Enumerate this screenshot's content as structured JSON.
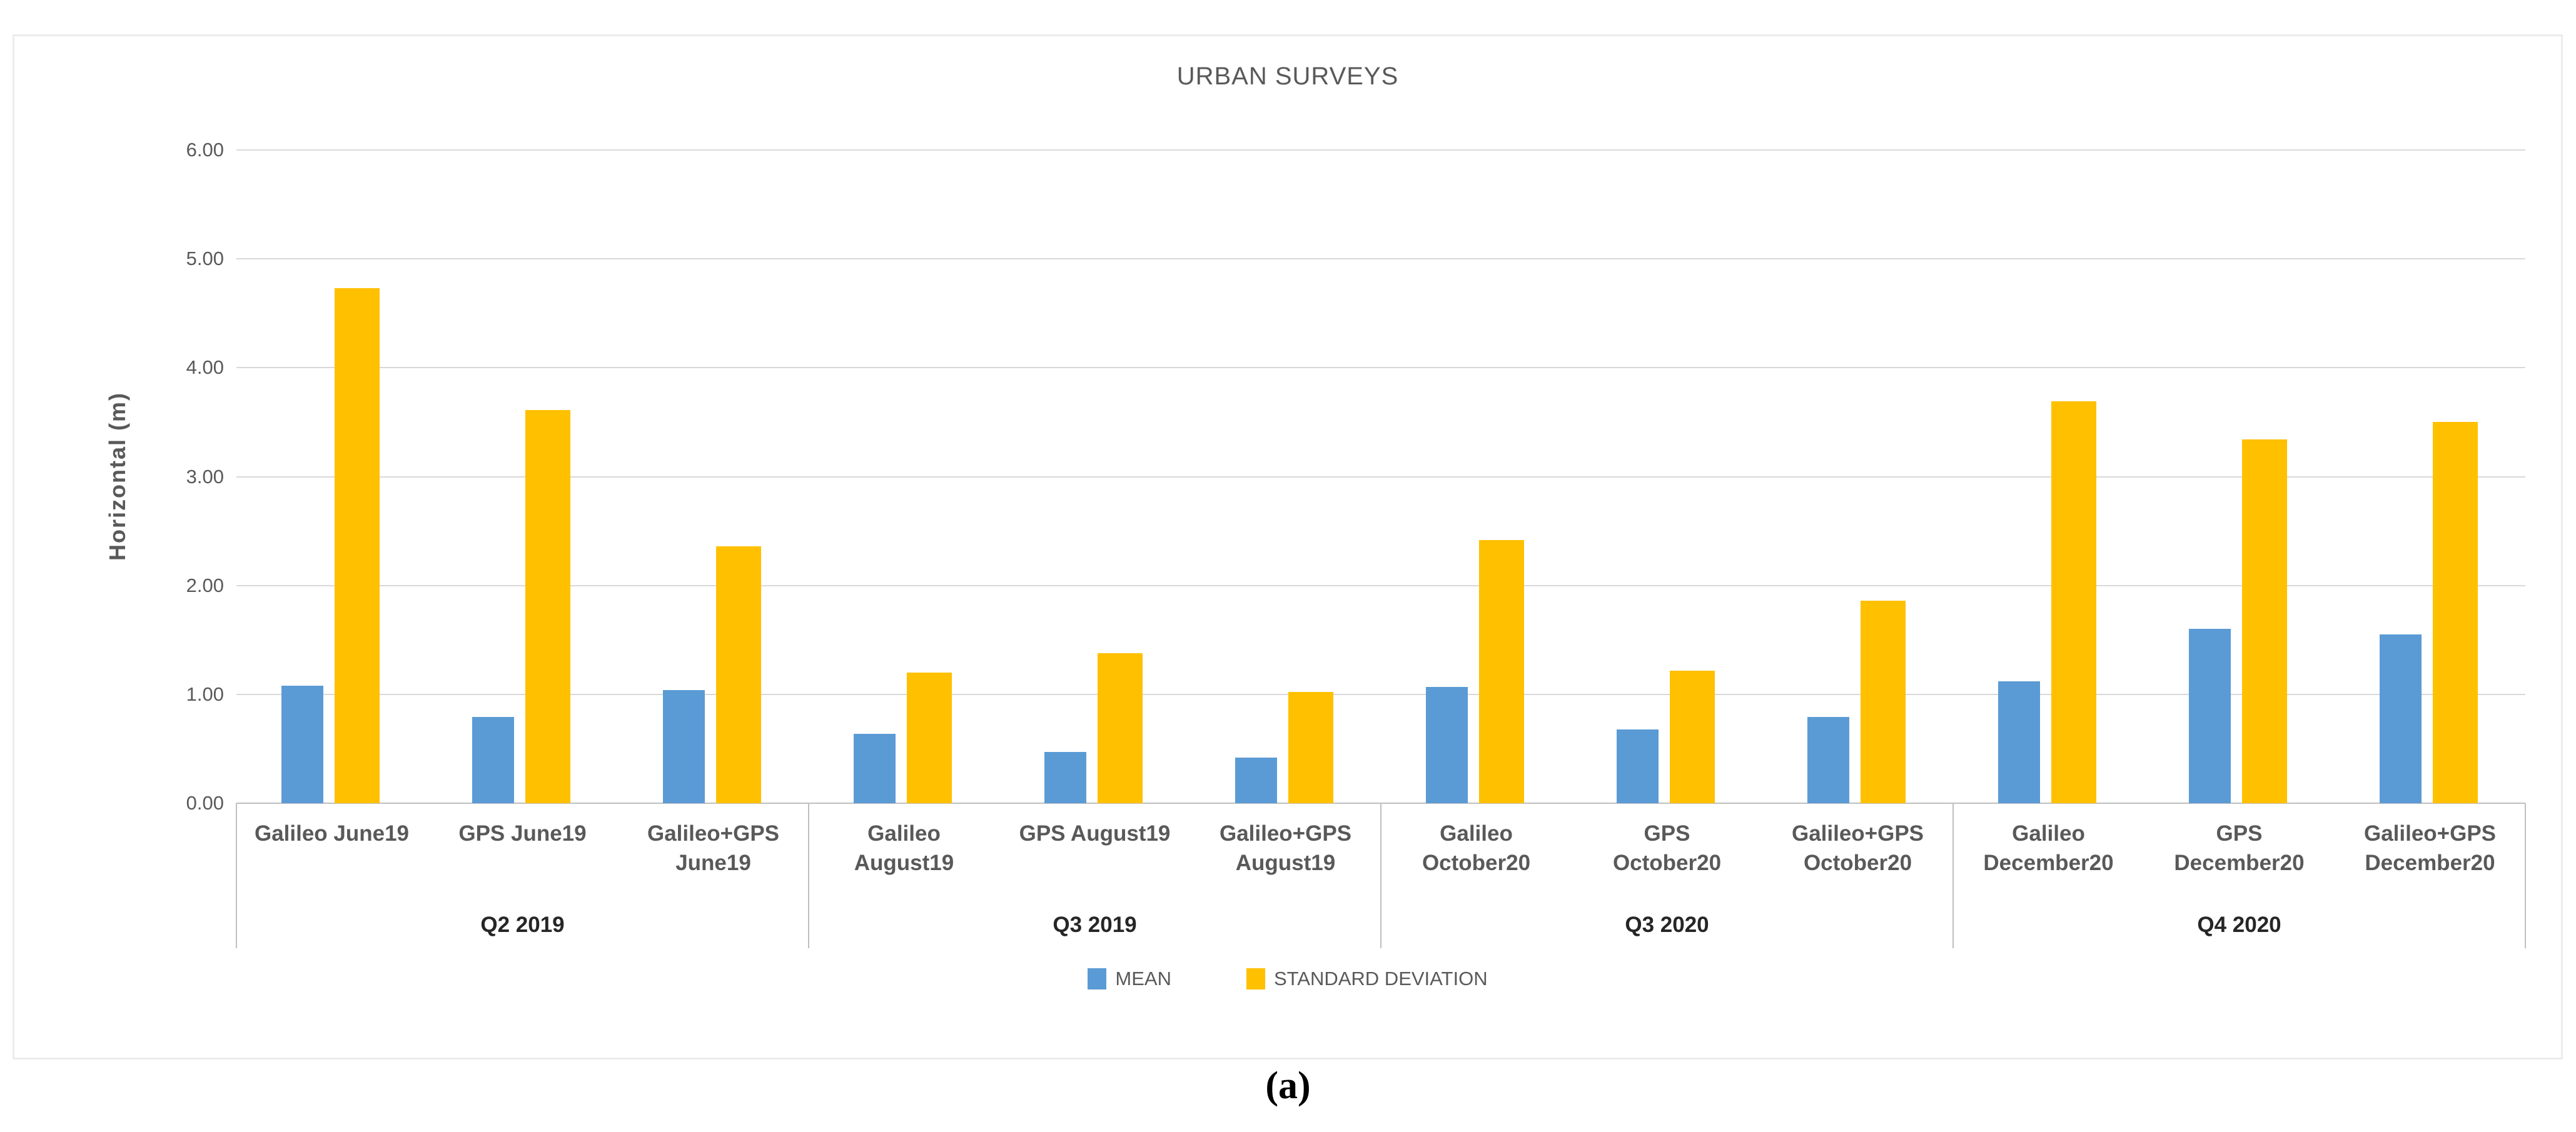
{
  "figure": {
    "caption": "(a)"
  },
  "chart_data": {
    "type": "bar",
    "title": "URBAN SURVEYS",
    "ylabel": "Horizontal (m)",
    "xlabel": "",
    "ylim": [
      0,
      6
    ],
    "ytick_labels": [
      "0.00",
      "1.00",
      "2.00",
      "3.00",
      "4.00",
      "5.00",
      "6.00"
    ],
    "grid": true,
    "legend_position": "bottom-center",
    "categories": [
      "Galileo June19",
      "GPS June19",
      "Galileo+GPS June19",
      "Galileo August19",
      "GPS August19",
      "Galileo+GPS August19",
      "Galileo October20",
      "GPS October20",
      "Galileo+GPS October20",
      "Galileo December20",
      "GPS December20",
      "Galileo+GPS December20"
    ],
    "category_label_lines": [
      [
        "Galileo June19"
      ],
      [
        "GPS June19"
      ],
      [
        "Galileo+GPS",
        "June19"
      ],
      [
        "Galileo",
        "August19"
      ],
      [
        "GPS August19"
      ],
      [
        "Galileo+GPS",
        "August19"
      ],
      [
        "Galileo",
        "October20"
      ],
      [
        "GPS",
        "October20"
      ],
      [
        "Galileo+GPS",
        "October20"
      ],
      [
        "Galileo",
        "December20"
      ],
      [
        "GPS",
        "December20"
      ],
      [
        "Galileo+GPS",
        "December20"
      ]
    ],
    "groups": [
      {
        "label": "Q2 2019",
        "start": 0,
        "count": 3
      },
      {
        "label": "Q3 2019",
        "start": 3,
        "count": 3
      },
      {
        "label": "Q3 2020",
        "start": 6,
        "count": 3
      },
      {
        "label": "Q4 2020",
        "start": 9,
        "count": 3
      }
    ],
    "series": [
      {
        "name": "MEAN",
        "color": "#5B9BD5",
        "values": [
          1.08,
          0.79,
          1.04,
          0.64,
          0.47,
          0.42,
          1.07,
          0.68,
          0.79,
          1.12,
          1.6,
          1.55
        ]
      },
      {
        "name": "STANDARD DEVIATION",
        "color": "#FFC000",
        "values": [
          4.73,
          3.61,
          2.36,
          1.2,
          1.38,
          1.02,
          2.42,
          1.22,
          1.86,
          3.69,
          3.34,
          3.5
        ]
      }
    ],
    "colors": {
      "grid": "#D9D9D9",
      "axis": "#BFBFBF",
      "text": "#595959",
      "group_text": "#262626",
      "border": "#ECECEC"
    }
  }
}
